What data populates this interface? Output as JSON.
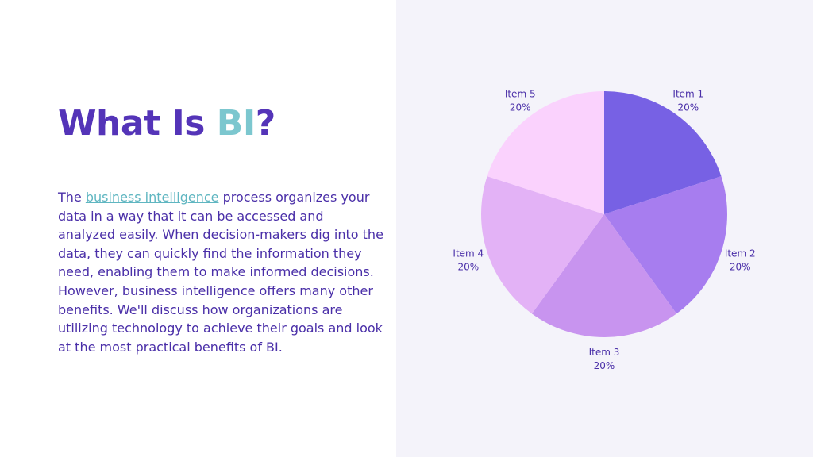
{
  "title": {
    "prefix": "What Is ",
    "accent": "BI",
    "suffix": "?"
  },
  "body": {
    "lead": "The ",
    "link_text": "business intelligence",
    "rest": " process organizes your data in a way that it can be accessed and analyzed easily. When decision-makers dig into the data, they can quickly find the information they need, enabling them to make informed decisions. However, business intelligence offers many other benefits. We'll discuss how organizations are utilizing technology to achieve their goals and look at the most practical benefits of BI."
  },
  "colors": {
    "title": "#5434b8",
    "accent": "#7cc7cf",
    "panel_background": "#f4f3fa"
  },
  "chart_data": {
    "type": "pie",
    "title": "",
    "labels": [
      "Item 1",
      "Item 2",
      "Item 3",
      "Item 4",
      "Item 5"
    ],
    "values": [
      20,
      20,
      20,
      20,
      20
    ],
    "value_labels": [
      "20%",
      "20%",
      "20%",
      "20%",
      "20%"
    ],
    "colors": [
      "#7761e4",
      "#a77def",
      "#c894ef",
      "#e3b2f6",
      "#fad2fd"
    ],
    "start": "top, clockwise",
    "legend": "none"
  }
}
